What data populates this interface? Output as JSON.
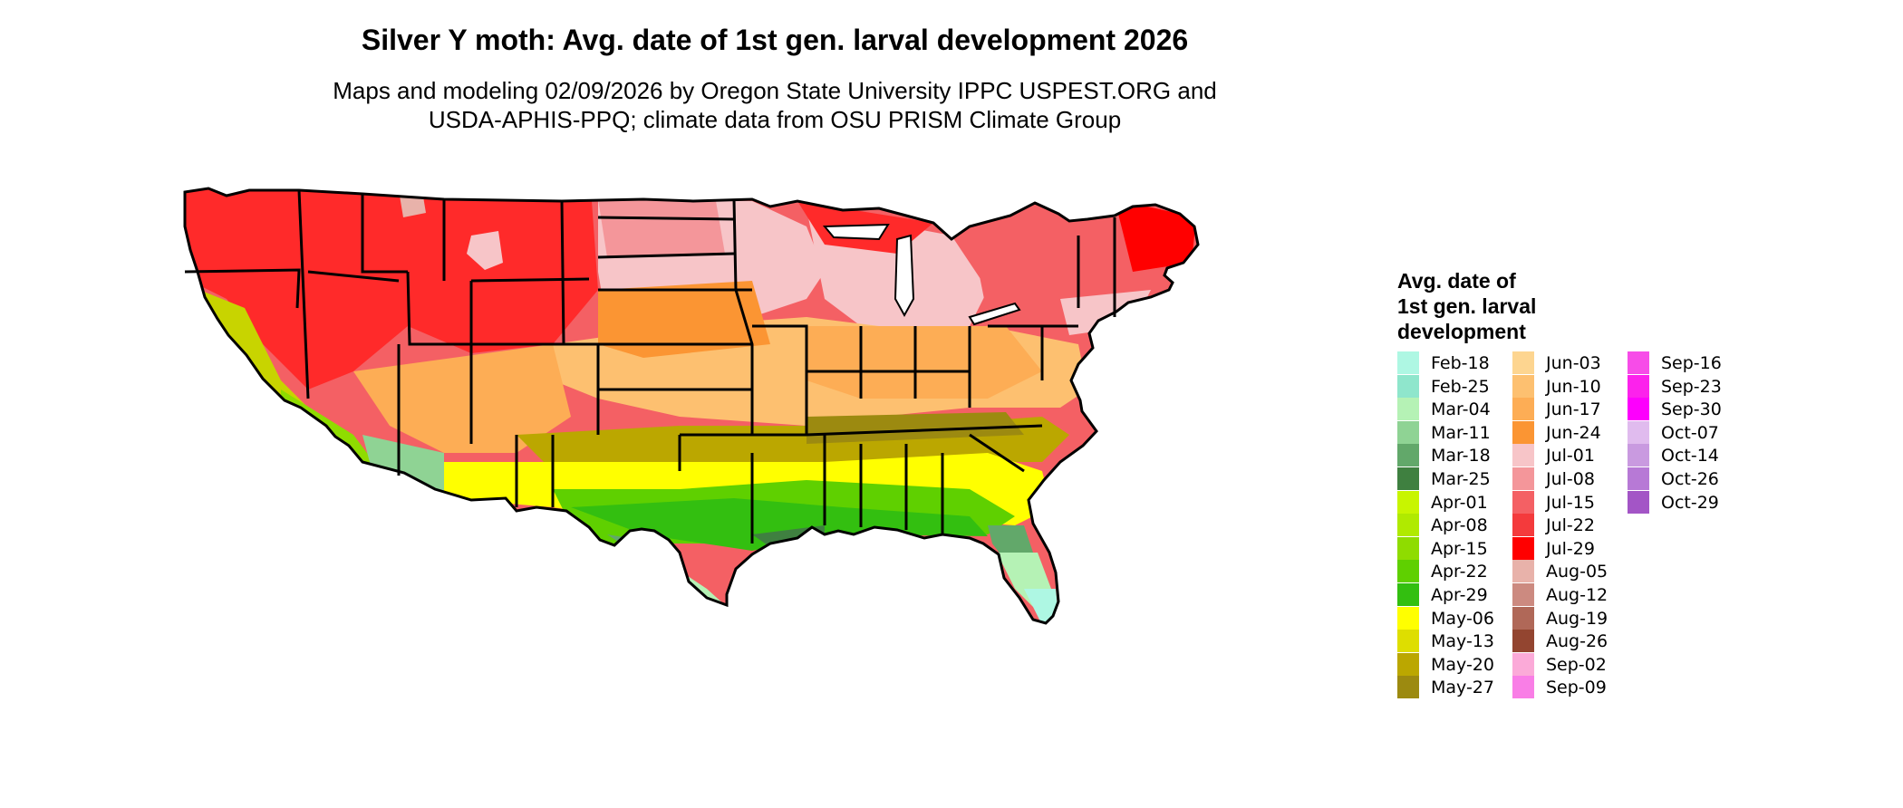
{
  "title": "Silver Y moth: Avg. date of 1st gen. larval development 2026",
  "subtitle_line1": "Maps and modeling 02/09/2026 by Oregon State University IPPC USPEST.ORG and",
  "subtitle_line2": "USDA-APHIS-PPQ; climate data from OSU PRISM Climate Group",
  "legend": {
    "title_line1": "Avg. date of",
    "title_line2": "1st gen. larval",
    "title_line3": "development",
    "columns": [
      [
        {
          "label": "Feb-18",
          "color": "#aef7e3"
        },
        {
          "label": "Feb-25",
          "color": "#8fe6cc"
        },
        {
          "label": "Mar-04",
          "color": "#b5f2b5"
        },
        {
          "label": "Mar-11",
          "color": "#8fd394"
        },
        {
          "label": "Mar-18",
          "color": "#62a86a"
        },
        {
          "label": "Mar-25",
          "color": "#3f8040"
        },
        {
          "label": "Apr-01",
          "color": "#c8f500"
        },
        {
          "label": "Apr-08",
          "color": "#b0ea00"
        },
        {
          "label": "Apr-15",
          "color": "#8fdc00"
        },
        {
          "label": "Apr-22",
          "color": "#5fd000"
        },
        {
          "label": "Apr-29",
          "color": "#33bf10"
        },
        {
          "label": "May-06",
          "color": "#ffff00"
        },
        {
          "label": "May-13",
          "color": "#dede00"
        },
        {
          "label": "May-20",
          "color": "#bba700"
        },
        {
          "label": "May-27",
          "color": "#9c8a10"
        }
      ],
      [
        {
          "label": "Jun-03",
          "color": "#fdd590"
        },
        {
          "label": "Jun-10",
          "color": "#fdc070"
        },
        {
          "label": "Jun-17",
          "color": "#fdad55"
        },
        {
          "label": "Jun-24",
          "color": "#fb9533"
        },
        {
          "label": "Jul-01",
          "color": "#f7c5c8"
        },
        {
          "label": "Jul-08",
          "color": "#f4969a"
        },
        {
          "label": "Jul-15",
          "color": "#f46064"
        },
        {
          "label": "Jul-22",
          "color": "#f43a3c"
        },
        {
          "label": "Jul-29",
          "color": "#ff0000"
        },
        {
          "label": "Aug-05",
          "color": "#e8b2aa"
        },
        {
          "label": "Aug-12",
          "color": "#cc8a80"
        },
        {
          "label": "Aug-19",
          "color": "#b06858"
        },
        {
          "label": "Aug-26",
          "color": "#934530"
        },
        {
          "label": "Sep-02",
          "color": "#fbaad8"
        },
        {
          "label": "Sep-09",
          "color": "#f97ee6"
        }
      ],
      [
        {
          "label": "Sep-16",
          "color": "#f74ce8"
        },
        {
          "label": "Sep-23",
          "color": "#fc22ec"
        },
        {
          "label": "Sep-30",
          "color": "#fd00fd"
        },
        {
          "label": "Oct-07",
          "color": "#e0bbee"
        },
        {
          "label": "Oct-14",
          "color": "#c99ae0"
        },
        {
          "label": "Oct-26",
          "color": "#b779d6"
        },
        {
          "label": "Oct-29",
          "color": "#a355c6"
        }
      ]
    ]
  }
}
